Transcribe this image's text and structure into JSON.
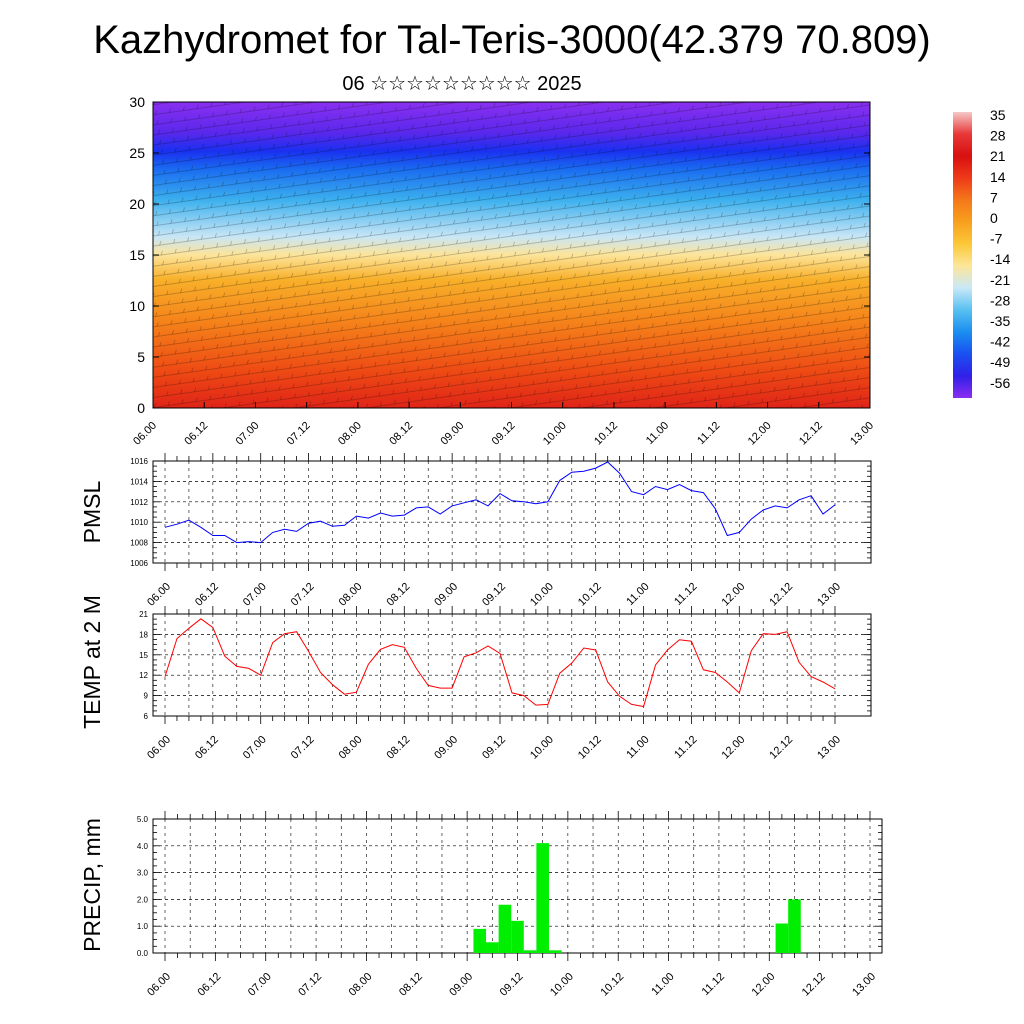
{
  "title": "Kazhydromet for Tal-Teris-3000(42.379 70.809)",
  "subtitle": "06 ☆☆☆☆☆☆☆☆☆ 2025",
  "time_labels": [
    "06.00",
    "06.12",
    "07.00",
    "07.12",
    "08.00",
    "08.12",
    "09.00",
    "09.12",
    "10.00",
    "10.12",
    "11.00",
    "11.12",
    "12.00",
    "12.12",
    "13.00"
  ],
  "colorbar": {
    "labels": [
      "35",
      "28",
      "21",
      "14",
      "7",
      "0",
      "-7",
      "-14",
      "-21",
      "-28",
      "-35",
      "-42",
      "-49",
      "-56"
    ],
    "colors": [
      "#f5c8c8",
      "#e83838",
      "#d81010",
      "#ee3a1a",
      "#f5781a",
      "#f8a01e",
      "#fbc838",
      "#fce69a",
      "#c8e8f8",
      "#58c0f0",
      "#1a8ef0",
      "#1a50f0",
      "#3020e8",
      "#8a2ef0"
    ]
  },
  "chart_data": [
    {
      "type": "heatmap",
      "title": "",
      "ylim": [
        0,
        30
      ],
      "y_ticks": [
        "0",
        "5",
        "10",
        "15",
        "20",
        "25",
        "30"
      ],
      "x_ticks": [
        "06.00",
        "06.12",
        "07.00",
        "07.12",
        "08.00",
        "08.12",
        "09.00",
        "09.12",
        "10.00",
        "10.12",
        "11.00",
        "11.12",
        "12.00",
        "12.12",
        "13.00"
      ],
      "zlim": [
        -56,
        35
      ]
    },
    {
      "type": "line",
      "ylabel": "PMSL",
      "ylim": [
        1006,
        1016
      ],
      "y_ticks": [
        "1006",
        "1008",
        "1010",
        "1012",
        "1014",
        "1016"
      ],
      "color": "#0000ff",
      "values": [
        1009.5,
        1009.8,
        1010.2,
        1009.5,
        1008.7,
        1008.7,
        1008.0,
        1008.1,
        1008.0,
        1009.0,
        1009.3,
        1009.1,
        1009.9,
        1010.1,
        1009.6,
        1009.7,
        1010.6,
        1010.4,
        1010.9,
        1010.6,
        1010.7,
        1011.4,
        1011.5,
        1010.8,
        1011.6,
        1011.9,
        1012.2,
        1011.6,
        1012.8,
        1012.1,
        1012.0,
        1011.8,
        1012.0,
        1014.1,
        1014.9,
        1015.0,
        1015.3,
        1015.9,
        1014.8,
        1013.0,
        1012.7,
        1013.5,
        1013.2,
        1013.7,
        1013.1,
        1012.9,
        1011.3,
        1008.7,
        1009.0,
        1010.3,
        1011.2,
        1011.6,
        1011.4,
        1012.2,
        1012.6,
        1010.8,
        1011.7
      ]
    },
    {
      "type": "line",
      "ylabel": "TEMP at 2 M",
      "ylim": [
        6,
        21
      ],
      "y_ticks": [
        "6",
        "9",
        "12",
        "15",
        "18",
        "21"
      ],
      "color": "#ff0000",
      "values": [
        11.8,
        17.4,
        18.9,
        20.3,
        19.0,
        14.8,
        13.3,
        13.0,
        12.0,
        16.8,
        18.1,
        18.4,
        15.5,
        12.4,
        10.6,
        9.2,
        9.5,
        13.6,
        15.8,
        16.5,
        16.1,
        13.0,
        10.5,
        10.1,
        10.1,
        14.7,
        15.3,
        16.3,
        15.2,
        9.4,
        9.0,
        7.6,
        7.7,
        12.3,
        13.8,
        16.0,
        15.7,
        11.0,
        8.9,
        7.7,
        7.4,
        13.5,
        15.7,
        17.2,
        17.0,
        12.8,
        12.4,
        11.0,
        9.4,
        15.6,
        18.1,
        18.0,
        18.4,
        13.9,
        11.8,
        11.0,
        10.0
      ]
    },
    {
      "type": "bar",
      "ylabel": "PRECIP, mm",
      "ylim": [
        0.0,
        5.0
      ],
      "y_ticks": [
        "0.0",
        "1.0",
        "2.0",
        "3.0",
        "4.0",
        "5.0"
      ],
      "color": "#00ee00",
      "bars": [
        {
          "x": 25,
          "value": 0.9
        },
        {
          "x": 26,
          "value": 0.4
        },
        {
          "x": 27,
          "value": 1.8
        },
        {
          "x": 28,
          "value": 1.2
        },
        {
          "x": 29,
          "value": 0.1
        },
        {
          "x": 30,
          "value": 4.1
        },
        {
          "x": 31,
          "value": 0.1
        },
        {
          "x": 49,
          "value": 1.1
        },
        {
          "x": 50,
          "value": 2.0
        }
      ]
    }
  ]
}
